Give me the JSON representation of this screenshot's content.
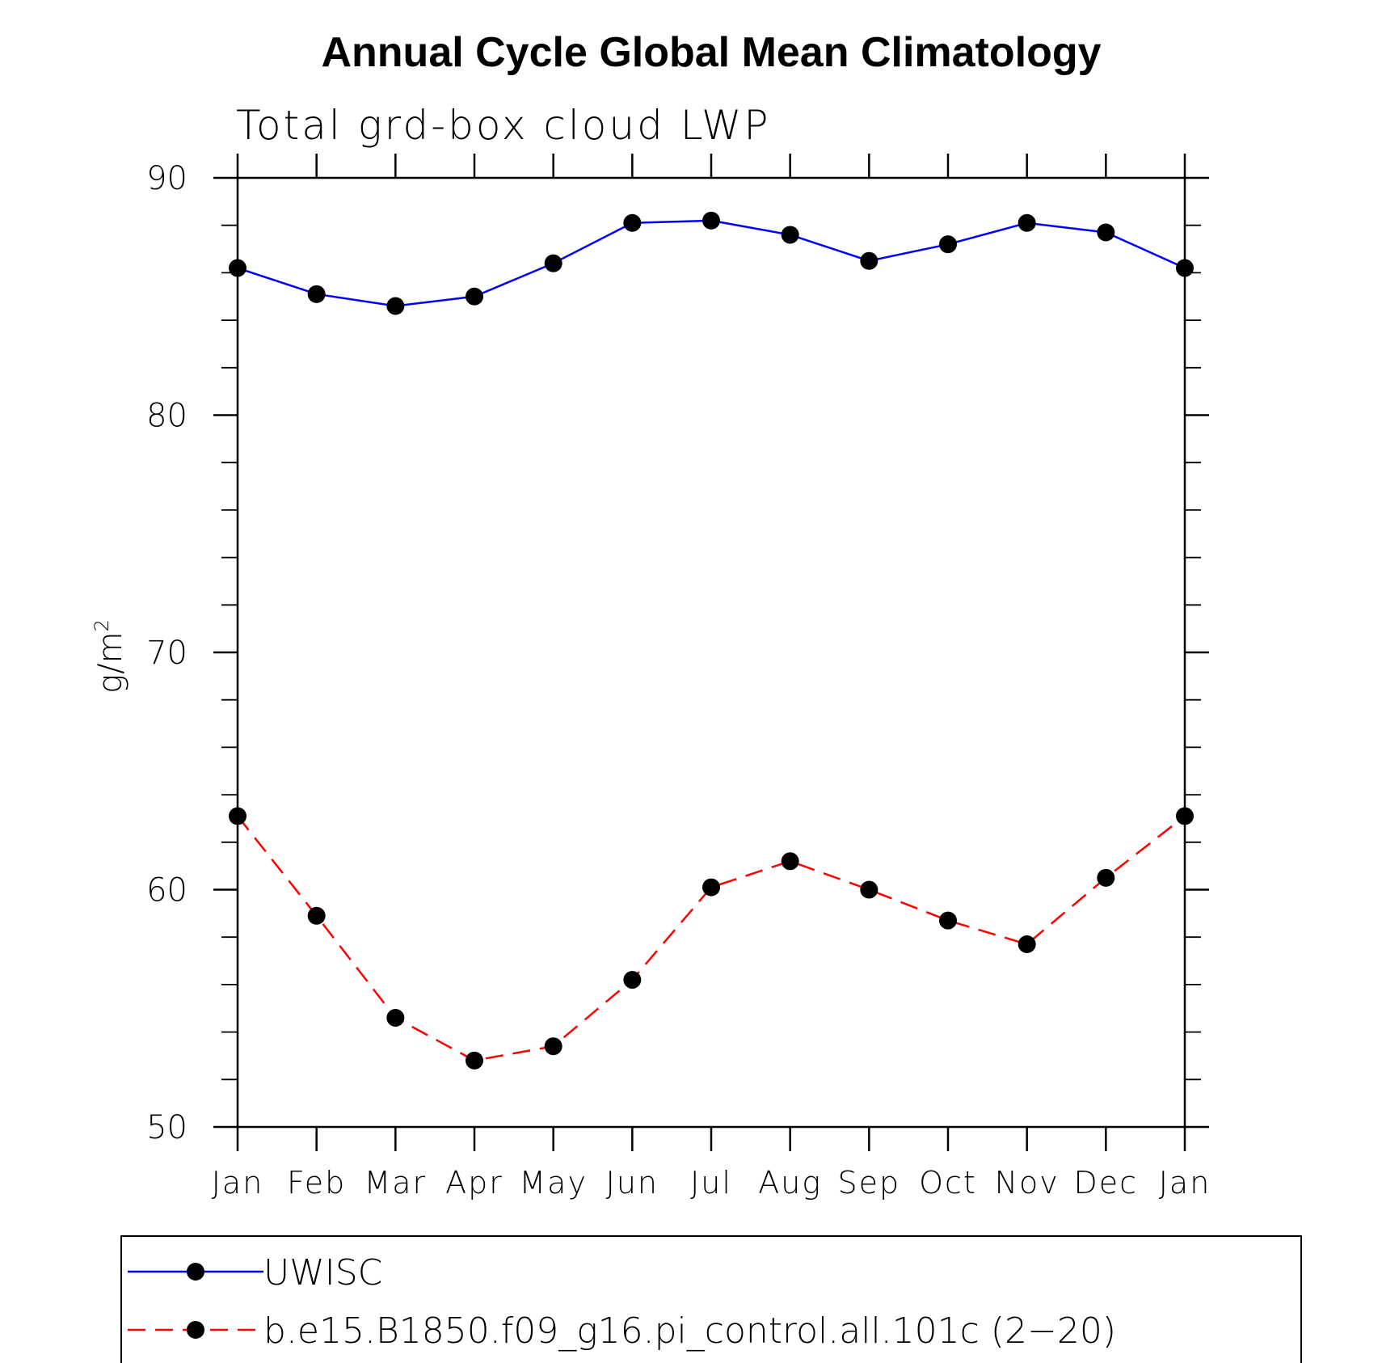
{
  "chart_data": {
    "type": "line",
    "title": "Annual Cycle Global Mean Climatology",
    "subtitle": "Total grd-box cloud LWP",
    "ylabel": "g/m",
    "ylabel_superscript": "2",
    "xlabel": "",
    "categories": [
      "Jan",
      "Feb",
      "Mar",
      "Apr",
      "May",
      "Jun",
      "Jul",
      "Aug",
      "Sep",
      "Oct",
      "Nov",
      "Dec",
      "Jan"
    ],
    "ylim": [
      50,
      90
    ],
    "yticks": [
      50,
      60,
      70,
      80,
      90
    ],
    "ytick_labels": [
      "50",
      "60",
      "70",
      "80",
      "90"
    ],
    "y_minor_step": 2,
    "grid": false,
    "legend_position": "bottom",
    "series": [
      {
        "name": "UWISC",
        "color": "#0000ff",
        "style": "solid",
        "marker": "filled-circle",
        "values": [
          86.2,
          85.1,
          84.6,
          85.0,
          86.4,
          88.1,
          88.2,
          87.6,
          86.5,
          87.2,
          88.1,
          87.7,
          86.2
        ]
      },
      {
        "name": "b.e15.B1850.f09_g16.pi_control.all.101c (2−20)",
        "color": "#ff0000",
        "style": "dashed",
        "marker": "filled-circle",
        "values": [
          63.1,
          58.9,
          54.6,
          52.8,
          53.4,
          56.2,
          60.1,
          61.2,
          60.0,
          58.7,
          57.7,
          60.5,
          63.1
        ]
      }
    ]
  }
}
